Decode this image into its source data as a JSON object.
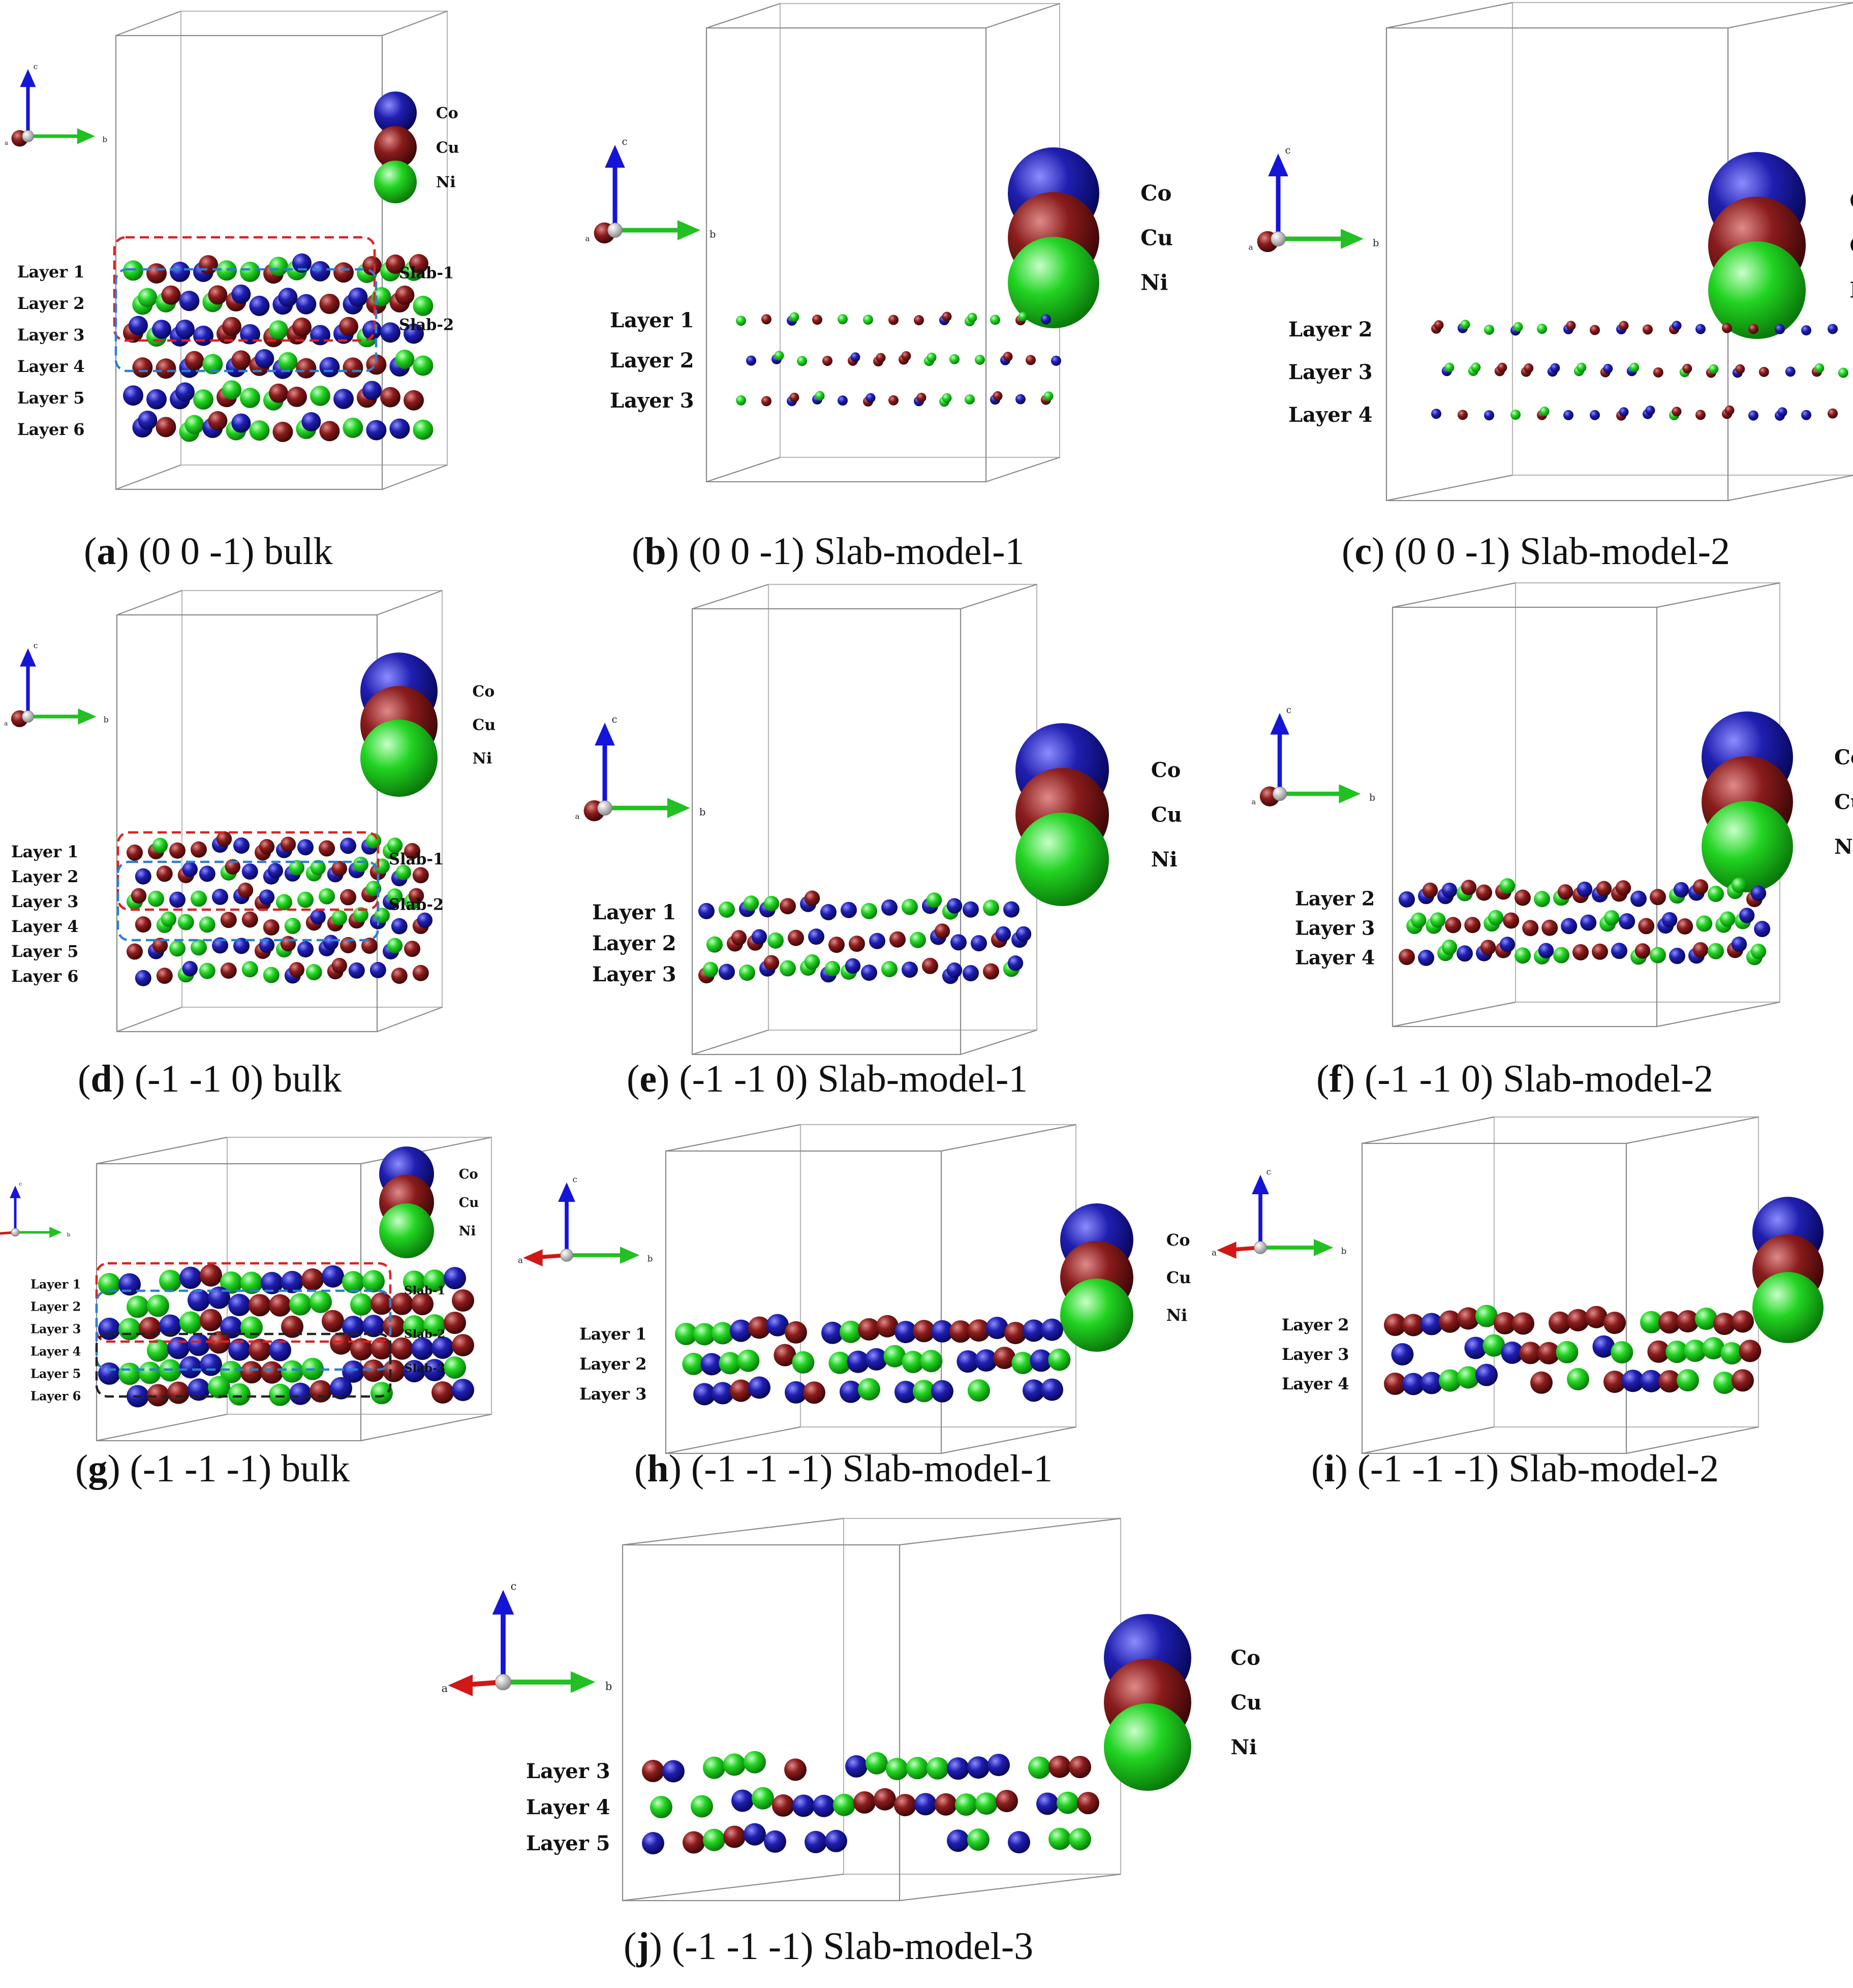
{
  "legend": {
    "items": [
      {
        "symbol": "Co",
        "color": "#1a1aa6"
      },
      {
        "symbol": "Cu",
        "color": "#7d1414"
      },
      {
        "symbol": "Ni",
        "color": "#1fd21f"
      }
    ]
  },
  "axis_labels": {
    "c": "c",
    "b": "b",
    "a": "a"
  },
  "panels": [
    {
      "id": "a",
      "letter": "a",
      "caption": " (0 0 -1) bulk",
      "view": "b",
      "layers": [
        "Layer 1",
        "Layer 2",
        "Layer 3",
        "Layer 4",
        "Layer 5",
        "Layer 6"
      ],
      "slabs": [
        {
          "label": "Slab-1",
          "color": "#e02020",
          "from_layer": 1,
          "to_layer": 3
        },
        {
          "label": "Slab-2",
          "color": "#2a7fd4",
          "from_layer": 2,
          "to_layer": 4
        }
      ]
    },
    {
      "id": "b",
      "letter": "b",
      "caption": " (0 0 -1) Slab-model-1",
      "view": "b",
      "layers": [
        "Layer 1",
        "Layer 2",
        "Layer 3"
      ],
      "slabs": []
    },
    {
      "id": "c",
      "letter": "c",
      "caption": " (0 0 -1) Slab-model-2",
      "view": "b",
      "layers": [
        "Layer 2",
        "Layer 3",
        "Layer 4"
      ],
      "slabs": []
    },
    {
      "id": "d",
      "letter": "d",
      "caption": " (-1 -1 0) bulk",
      "view": "b",
      "layers": [
        "Layer 1",
        "Layer 2",
        "Layer 3",
        "Layer 4",
        "Layer 5",
        "Layer 6"
      ],
      "slabs": [
        {
          "label": "Slab-1",
          "color": "#e02020",
          "from_layer": 1,
          "to_layer": 3
        },
        {
          "label": "Slab-2",
          "color": "#2a7fd4",
          "from_layer": 2,
          "to_layer": 4
        }
      ]
    },
    {
      "id": "e",
      "letter": "e",
      "caption": " (-1 -1 0) Slab-model-1",
      "view": "b",
      "layers": [
        "Layer 1",
        "Layer 2",
        "Layer 3"
      ],
      "slabs": []
    },
    {
      "id": "f",
      "letter": "f",
      "caption": " (-1 -1 0) Slab-model-2",
      "view": "b",
      "layers": [
        "Layer 2",
        "Layer 3",
        "Layer 4"
      ],
      "slabs": []
    },
    {
      "id": "g",
      "letter": "g",
      "caption": " (-1 -1 -1) bulk",
      "view": "a",
      "layers": [
        "Layer 1",
        "Layer 2",
        "Layer 3",
        "Layer 4",
        "Layer 5",
        "Layer 6"
      ],
      "slabs": [
        {
          "label": "Slab-1",
          "color": "#e02020",
          "from_layer": 1,
          "to_layer": 3
        },
        {
          "label": "Slab-2",
          "color": "#2a7fd4",
          "from_layer": 2,
          "to_layer": 4
        },
        {
          "label": "Slab-3",
          "color": "#222222",
          "from_layer": 3,
          "to_layer": 5
        }
      ]
    },
    {
      "id": "h",
      "letter": "h",
      "caption": " (-1 -1 -1) Slab-model-1",
      "view": "a",
      "layers": [
        "Layer 1",
        "Layer 2",
        "Layer 3"
      ],
      "slabs": []
    },
    {
      "id": "i",
      "letter": "i",
      "caption": " (-1 -1 -1) Slab-model-2",
      "view": "a",
      "layers": [
        "Layer 2",
        "Layer 3",
        "Layer 4"
      ],
      "slabs": []
    },
    {
      "id": "j",
      "letter": "j",
      "caption": " (-1 -1 -1) Slab-model-3",
      "view": "a",
      "layers": [
        "Layer 3",
        "Layer 4",
        "Layer 5"
      ],
      "slabs": []
    }
  ]
}
